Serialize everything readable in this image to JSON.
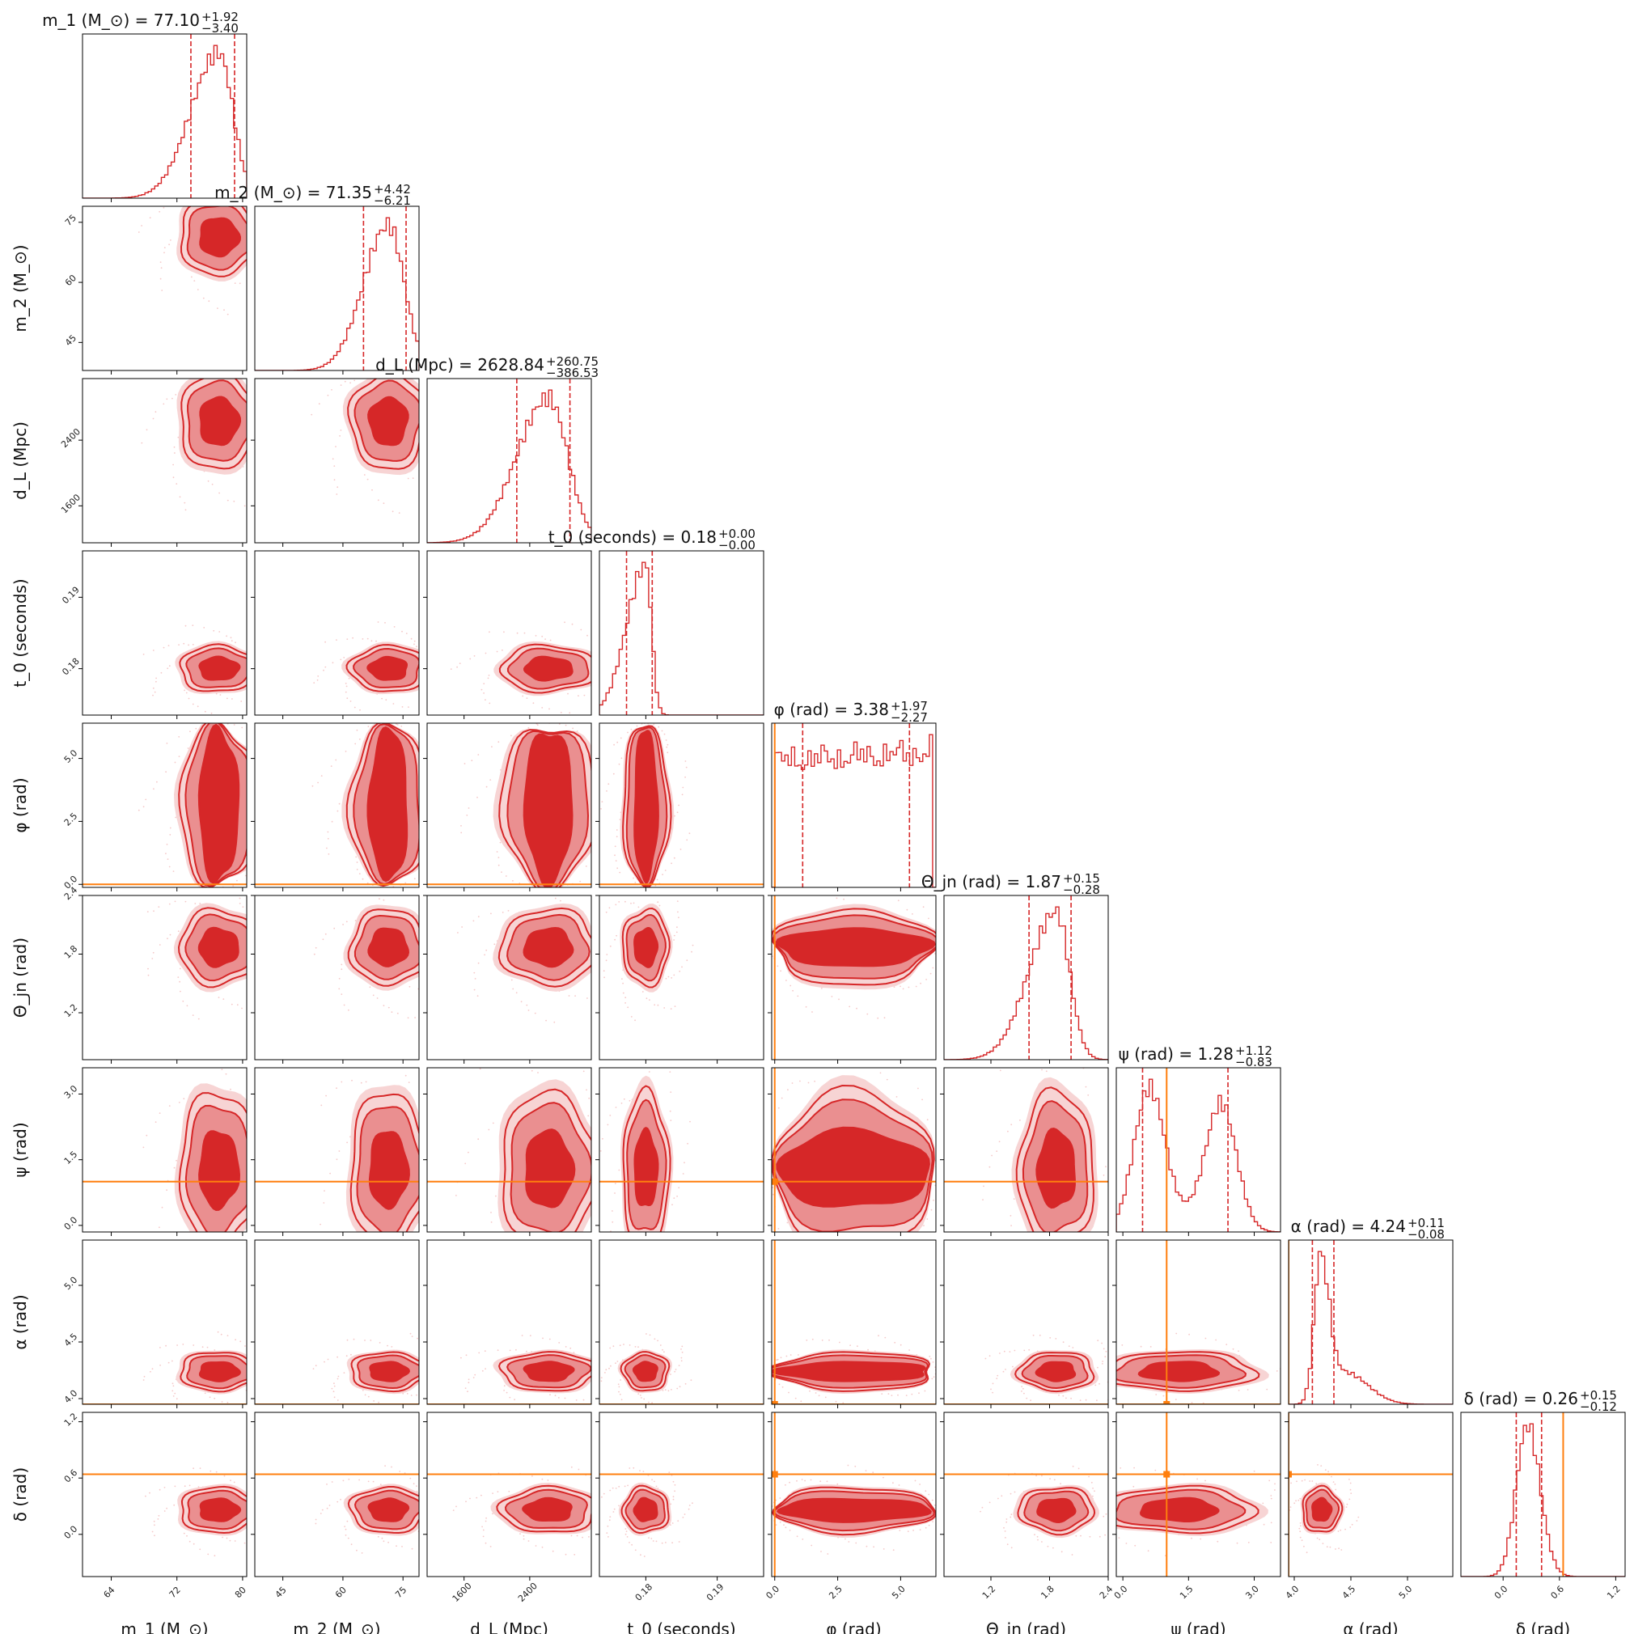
{
  "chart_data": {
    "type": "corner",
    "params": [
      {
        "label": "m_1 (M_⊙)",
        "range": [
          60.5,
          80.5
        ],
        "ticks": [
          64,
          72,
          80
        ],
        "median": 77.1,
        "plus": "+1.92",
        "minus": "−3.40",
        "lo": 73.7,
        "hi": 79.02,
        "title": "m_1 (M_⊙) = 77.10"
      },
      {
        "label": "m_2 (M_⊙)",
        "range": [
          38,
          79
        ],
        "ticks": [
          45,
          60,
          75
        ],
        "median": 71.35,
        "plus": "+4.42",
        "minus": "−6.21",
        "lo": 65.14,
        "hi": 75.77,
        "title": "m_2 (M_⊙) = 71.35"
      },
      {
        "label": "d_L (Mpc)",
        "range": [
          1150,
          3150
        ],
        "ticks": [
          1600,
          2400
        ],
        "median": 2628.84,
        "plus": "+260.75",
        "minus": "−386.53",
        "lo": 2242.31,
        "hi": 2889.59,
        "title": "d_L (Mpc) = 2628.84"
      },
      {
        "label": "t_0 (seconds)",
        "range": [
          0.1735,
          0.1965
        ],
        "ticks": [
          0.18,
          0.19
        ],
        "ticklabels": [
          "0.18",
          "0.19"
        ],
        "median": 0.18,
        "plus": "+0.00",
        "minus": "−0.00",
        "lo": 0.1773,
        "hi": 0.1809,
        "title": "t_0 (seconds) = 0.18"
      },
      {
        "label": "φ (rad)",
        "range": [
          -0.12,
          6.4
        ],
        "ticks": [
          0.0,
          2.5,
          5.0
        ],
        "ticklabels": [
          "0.0",
          "2.5",
          "5.0"
        ],
        "median": 3.38,
        "plus": "+1.97",
        "minus": "−2.27",
        "lo": 1.11,
        "hi": 5.35,
        "truth": 0.0,
        "title": "φ (rad) = 3.38"
      },
      {
        "label": "Θ_jn (rad)",
        "range": [
          0.72,
          2.4
        ],
        "ticks": [
          1.2,
          1.8,
          2.4
        ],
        "ticklabels": [
          "1.2",
          "1.8",
          "2.4"
        ],
        "median": 1.87,
        "plus": "+0.15",
        "minus": "−0.28",
        "lo": 1.59,
        "hi": 2.02,
        "title": "Θ_jn (rad) = 1.87"
      },
      {
        "label": "ψ (rad)",
        "range": [
          -0.15,
          3.6
        ],
        "ticks": [
          0.0,
          1.5,
          3.0
        ],
        "ticklabels": [
          "0.0",
          "1.5",
          "3.0"
        ],
        "median": 1.28,
        "plus": "+1.12",
        "minus": "−0.83",
        "lo": 0.45,
        "hi": 2.4,
        "truth": 1.0,
        "title": "ψ (rad) = 1.28"
      },
      {
        "label": "α (rad)",
        "range": [
          3.95,
          5.4
        ],
        "ticks": [
          4.0,
          4.5,
          5.0
        ],
        "ticklabels": [
          "4.0",
          "4.5",
          "5.0"
        ],
        "median": 4.24,
        "plus": "+0.11",
        "minus": "−0.08",
        "lo": 4.16,
        "hi": 4.35,
        "truth": 3.95,
        "title": "α (rad) = 4.24"
      },
      {
        "label": "δ (rad)",
        "range": [
          -0.45,
          1.3
        ],
        "ticks": [
          0.0,
          0.6,
          1.2
        ],
        "ticklabels": [
          "0.0",
          "0.6",
          "1.2"
        ],
        "median": 0.26,
        "plus": "+0.15",
        "minus": "−0.12",
        "lo": 0.14,
        "hi": 0.41,
        "truth": 0.64,
        "title": "δ (rad) = 0.26"
      }
    ],
    "colors": {
      "posterior": "#d62728",
      "fill_dark": "#d62728",
      "fill_light": "#ea8f90",
      "fill_lighter": "#f7d4d4",
      "truth": "#ff7f0e"
    }
  }
}
